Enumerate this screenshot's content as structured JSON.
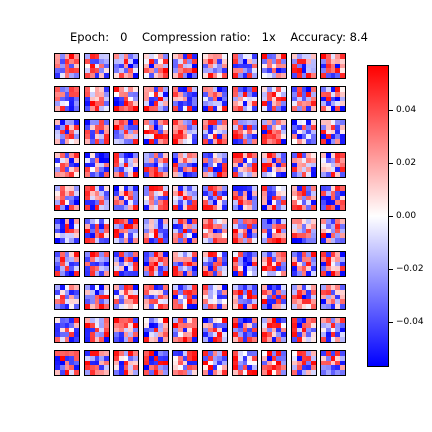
{
  "header": {
    "epoch_label": "Epoch:",
    "epoch_value": "0",
    "compression_label": "Compression ratio:",
    "compression_value": "1x",
    "accuracy_label": "Accuracy:",
    "accuracy_value": "8.4"
  },
  "grid": {
    "rows": 10,
    "cols": 10,
    "kernel_size": 5
  },
  "colorbar": {
    "min": -0.057,
    "max": 0.057,
    "ticks": [
      {
        "value": 0.04,
        "label": "0.04"
      },
      {
        "value": 0.02,
        "label": "0.02"
      },
      {
        "value": 0.0,
        "label": "0.00"
      },
      {
        "value": -0.02,
        "label": "−0.02"
      },
      {
        "value": -0.04,
        "label": "−0.04"
      }
    ],
    "colors": {
      "high": "#ff0000",
      "mid": "#ffffff",
      "low": "#0000ff"
    }
  }
}
